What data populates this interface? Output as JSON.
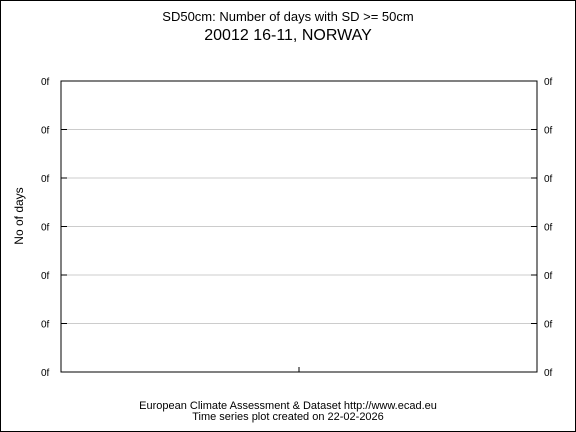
{
  "chart_data": {
    "type": "line",
    "title": "SD50cm: Number of days with SD >= 50cm",
    "subtitle": "20012 16-11, NORWAY",
    "xlabel": "",
    "ylabel": "No of days",
    "y_tick_labels": [
      "0f",
      "0f",
      "0f",
      "0f",
      "0f",
      "0f",
      "0f"
    ],
    "grid": true,
    "series": []
  },
  "footer": {
    "line1": "European Climate Assessment & Dataset  http://www.ecad.eu",
    "line2": "Time series plot created on 22-02-2026"
  },
  "colors": {
    "gridline": "#cccccc",
    "axis": "#000000"
  }
}
